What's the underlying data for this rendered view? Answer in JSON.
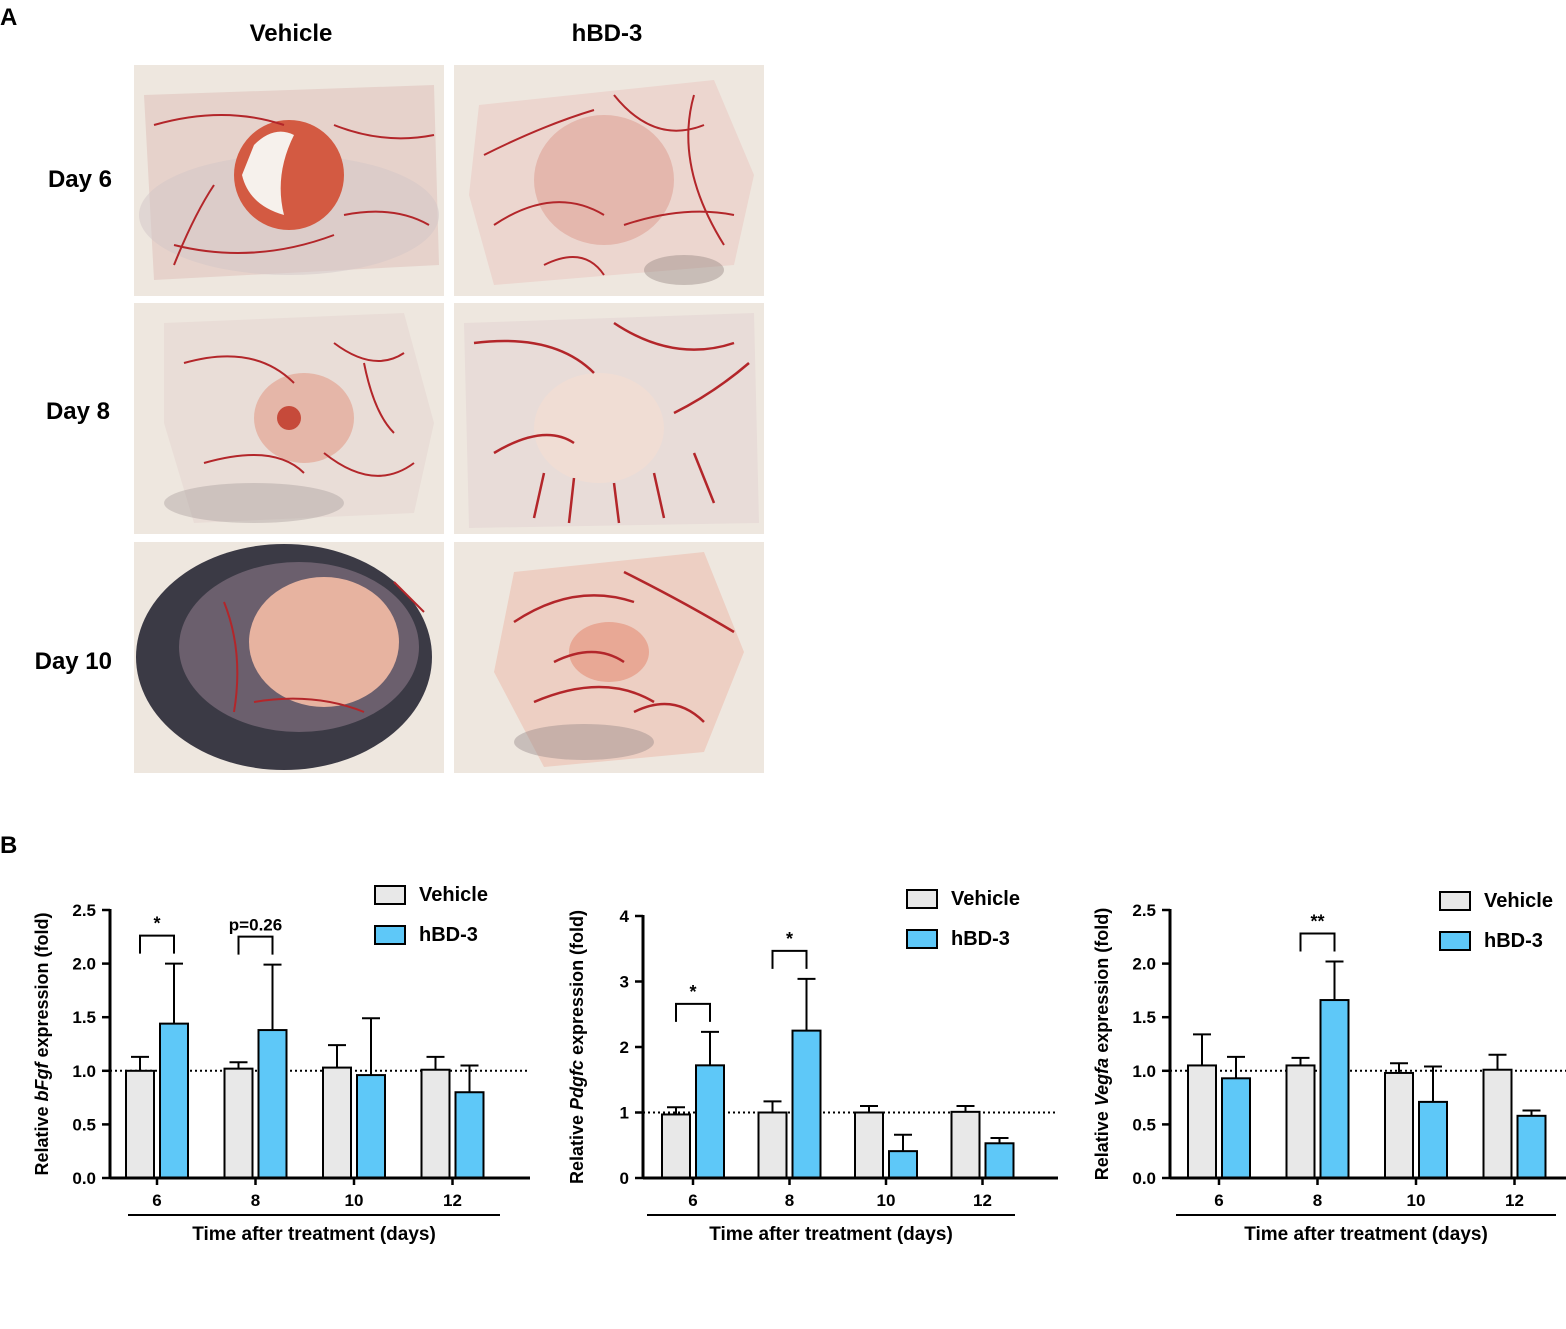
{
  "panel_a": {
    "letter": "A",
    "columns": [
      "Vehicle",
      "hBD-3"
    ],
    "rows": [
      "Day 6",
      "Day 8",
      "Day 10"
    ]
  },
  "panel_b": {
    "letter": "B"
  },
  "colors": {
    "vehicle": "#e8e8e8",
    "hbd3": "#5ec8f8",
    "outline": "#000000",
    "reference_line": "#000000"
  },
  "chart_data": [
    {
      "type": "bar",
      "ylabel_prefix": "Relative ",
      "ylabel_gene": "bFgf",
      "ylabel_suffix": " expression (fold)",
      "xlabel": "Time after treatment (days)",
      "categories": [
        "6",
        "8",
        "10",
        "12"
      ],
      "ylim": [
        0,
        2.5
      ],
      "yticks": [
        "0.0",
        "0.5",
        "1.0",
        "1.5",
        "2.0",
        "2.5"
      ],
      "reference_line": 1.0,
      "legend": [
        "Vehicle",
        "hBD-3"
      ],
      "legend_position": "top-right",
      "series": [
        {
          "name": "Vehicle",
          "values": [
            1.0,
            1.02,
            1.03,
            1.01
          ],
          "errors": [
            0.13,
            0.06,
            0.21,
            0.12
          ]
        },
        {
          "name": "hBD-3",
          "values": [
            1.44,
            1.38,
            0.96,
            0.8
          ],
          "errors": [
            0.56,
            0.61,
            0.53,
            0.25
          ]
        }
      ],
      "annotations": [
        {
          "category": "6",
          "text": "*"
        },
        {
          "category": "8",
          "text": "p=0.26"
        }
      ]
    },
    {
      "type": "bar",
      "ylabel_prefix": "Relative ",
      "ylabel_gene": "Pdgfc",
      "ylabel_suffix": " expression (fold)",
      "xlabel": "Time after treatment (days)",
      "categories": [
        "6",
        "8",
        "10",
        "12"
      ],
      "ylim": [
        0,
        4
      ],
      "yticks": [
        "0",
        "1",
        "2",
        "3",
        "4"
      ],
      "reference_line": 1.0,
      "legend": [
        "Vehicle",
        "hBD-3"
      ],
      "legend_position": "top-right",
      "series": [
        {
          "name": "Vehicle",
          "values": [
            0.97,
            1.0,
            1.0,
            1.01
          ],
          "errors": [
            0.11,
            0.17,
            0.1,
            0.09
          ]
        },
        {
          "name": "hBD-3",
          "values": [
            1.72,
            2.25,
            0.41,
            0.53
          ],
          "errors": [
            0.51,
            0.79,
            0.25,
            0.08
          ]
        }
      ],
      "annotations": [
        {
          "category": "6",
          "text": "*"
        },
        {
          "category": "8",
          "text": "*"
        }
      ]
    },
    {
      "type": "bar",
      "ylabel_prefix": "Relative ",
      "ylabel_gene": "Vegfa",
      "ylabel_suffix": " expression (fold)",
      "xlabel": "Time after treatment (days)",
      "categories": [
        "6",
        "8",
        "10",
        "12"
      ],
      "ylim": [
        0,
        2.5
      ],
      "yticks": [
        "0.0",
        "0.5",
        "1.0",
        "1.5",
        "2.0",
        "2.5"
      ],
      "reference_line": 1.0,
      "legend": [
        "Vehicle",
        "hBD-3"
      ],
      "legend_position": "top-right",
      "series": [
        {
          "name": "Vehicle",
          "values": [
            1.05,
            1.05,
            0.98,
            1.01
          ],
          "errors": [
            0.29,
            0.07,
            0.09,
            0.14
          ]
        },
        {
          "name": "hBD-3",
          "values": [
            0.93,
            1.66,
            0.71,
            0.58
          ],
          "errors": [
            0.2,
            0.36,
            0.33,
            0.05
          ]
        }
      ],
      "annotations": [
        {
          "category": "8",
          "text": "**"
        }
      ]
    }
  ]
}
